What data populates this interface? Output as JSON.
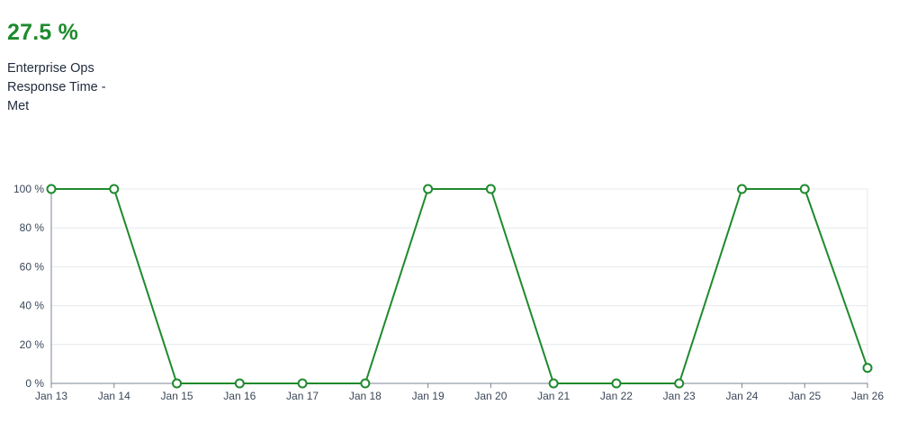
{
  "kpi": {
    "value": "27.5 %",
    "label": "Enterprise Ops Response Time - Met"
  },
  "colors": {
    "series": "#1e8a2d",
    "grid": "#e6e8ec",
    "axis": "#7b8494",
    "text": "#3b4759"
  },
  "chart_data": {
    "type": "line",
    "x": [
      "Jan 13",
      "Jan 14",
      "Jan 15",
      "Jan 16",
      "Jan 17",
      "Jan 18",
      "Jan 19",
      "Jan 20",
      "Jan 21",
      "Jan 22",
      "Jan 23",
      "Jan 24",
      "Jan 25",
      "Jan 26"
    ],
    "series": [
      {
        "values": [
          100,
          100,
          0,
          0,
          0,
          0,
          100,
          100,
          0,
          0,
          0,
          100,
          100,
          8
        ]
      }
    ],
    "ylim": [
      0,
      100
    ],
    "yticks": [
      0,
      20,
      40,
      60,
      80,
      100
    ],
    "ytick_labels": [
      "0 %",
      "20 %",
      "40 %",
      "60 %",
      "80 %",
      "100 %"
    ],
    "grid": true,
    "legend": "none",
    "markers": "open-circle"
  }
}
